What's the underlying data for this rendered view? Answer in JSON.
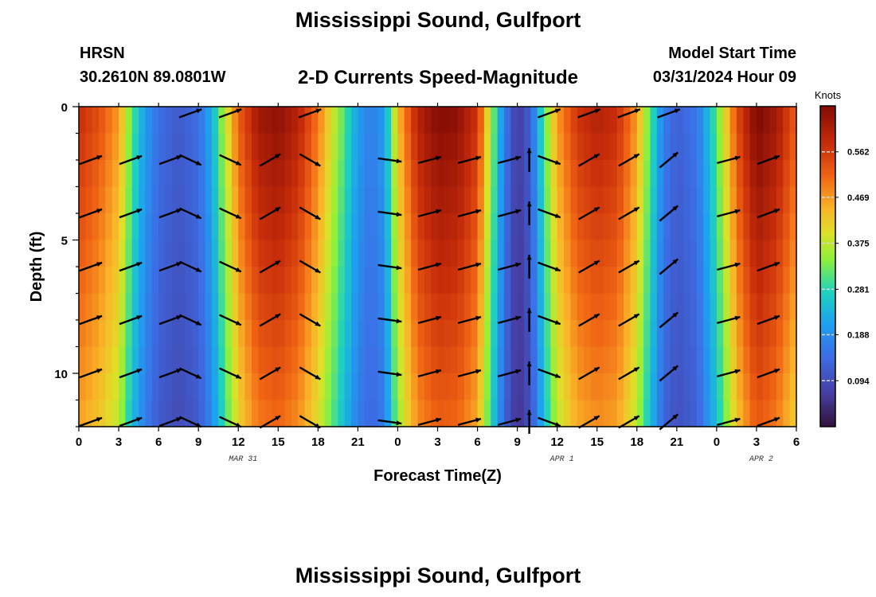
{
  "header": {
    "title": "Mississippi Sound, Gulfport",
    "station": "HRSN",
    "coords": "30.2610N  89.0801W",
    "plot_title": "2-D Currents Speed-Magnitude",
    "model_label": "Model Start Time",
    "model_time": "03/31/2024 Hour 09",
    "bottom_title": "Mississippi Sound, Gulfport"
  },
  "chart_data": {
    "type": "heatmap",
    "title": "2-D Currents Speed-Magnitude",
    "xlabel": "Forecast Time(Z)",
    "ylabel": "Depth (ft)",
    "x_range_hours": [
      0,
      54
    ],
    "y_range_ft": [
      0,
      12
    ],
    "x_ticks": [
      {
        "h": 0,
        "label": "0"
      },
      {
        "h": 3,
        "label": "3"
      },
      {
        "h": 6,
        "label": "6"
      },
      {
        "h": 9,
        "label": "9"
      },
      {
        "h": 12,
        "label": "12"
      },
      {
        "h": 15,
        "label": "15"
      },
      {
        "h": 18,
        "label": "18"
      },
      {
        "h": 21,
        "label": "21"
      },
      {
        "h": 24,
        "label": "0"
      },
      {
        "h": 27,
        "label": "3"
      },
      {
        "h": 30,
        "label": "6"
      },
      {
        "h": 33,
        "label": "9"
      },
      {
        "h": 36,
        "label": "12"
      },
      {
        "h": 39,
        "label": "15"
      },
      {
        "h": 42,
        "label": "18"
      },
      {
        "h": 45,
        "label": "21"
      },
      {
        "h": 48,
        "label": "0"
      },
      {
        "h": 51,
        "label": "3"
      },
      {
        "h": 54,
        "label": "6"
      }
    ],
    "y_ticks": [
      {
        "d": 0,
        "label": "0"
      },
      {
        "d": 5,
        "label": "5"
      },
      {
        "d": 10,
        "label": "10"
      }
    ],
    "date_labels": [
      {
        "h": 12,
        "label": "MAR 31"
      },
      {
        "h": 36,
        "label": "APR 1"
      },
      {
        "h": 51,
        "label": "APR 2"
      }
    ],
    "colorbar": {
      "unit": "Knots",
      "range": [
        0,
        0.656
      ],
      "ticks": [
        "0.094",
        "0.188",
        "0.281",
        "0.375",
        "0.469",
        "0.562"
      ]
    },
    "speed_profile_hours": [
      0,
      1.5,
      3,
      4,
      5,
      6,
      7.5,
      9,
      10,
      11,
      12,
      13.5,
      15,
      16.5,
      18,
      19.5,
      21,
      22,
      23,
      24,
      25.5,
      27,
      28.5,
      30,
      31,
      32,
      33,
      34,
      35,
      36,
      37.5,
      39,
      40.5,
      42,
      43,
      44,
      45,
      46.5,
      48,
      49.5,
      51,
      52.5,
      54
    ],
    "speed_profile_knots": [
      0.56,
      0.52,
      0.45,
      0.3,
      0.2,
      0.14,
      0.11,
      0.14,
      0.22,
      0.36,
      0.5,
      0.6,
      0.62,
      0.58,
      0.48,
      0.34,
      0.2,
      0.16,
      0.2,
      0.42,
      0.58,
      0.63,
      0.62,
      0.55,
      0.35,
      0.16,
      0.06,
      0.12,
      0.3,
      0.45,
      0.55,
      0.58,
      0.56,
      0.45,
      0.3,
      0.16,
      0.12,
      0.15,
      0.3,
      0.52,
      0.64,
      0.6,
      0.5
    ],
    "arrow_columns_hours": [
      0,
      3,
      6,
      7.5,
      10.5,
      13.5,
      16.5,
      22.5,
      25.5,
      28.5,
      31.5,
      33,
      34.5,
      37.5,
      40.5,
      43.5,
      48,
      51
    ],
    "arrow_rows_ft": [
      2,
      4,
      6,
      8,
      10,
      12
    ],
    "arrow_directions_deg": [
      20,
      20,
      20,
      -25,
      -25,
      30,
      -30,
      -8,
      15,
      15,
      15,
      90,
      -20,
      30,
      30,
      40,
      15,
      20
    ],
    "arrow_top_row_directions_deg": [
      null,
      null,
      null,
      20,
      20,
      null,
      20,
      null,
      null,
      null,
      null,
      null,
      20,
      20,
      20,
      20,
      null,
      null
    ]
  }
}
